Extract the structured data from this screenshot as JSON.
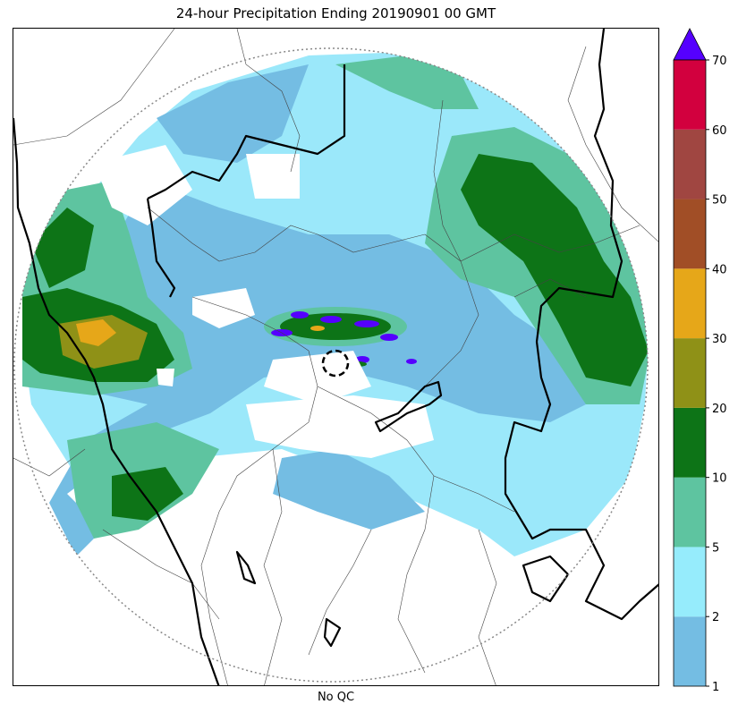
{
  "title": "24-hour Precipitation Ending 20190901 00 GMT",
  "xlabel": "No QC",
  "colorbar": {
    "levels": [
      "1",
      "2",
      "5",
      "10",
      "20",
      "30",
      "40",
      "50",
      "60",
      "70"
    ],
    "colors": [
      "#74bde3",
      "#96ecfc",
      "#5ec4a0",
      "#0d7417",
      "#8f9117",
      "#e6a719",
      "#a14e26",
      "#a04641",
      "#d2003e"
    ],
    "extend_color": "#5500ff"
  },
  "colors": {
    "trace": "#9be8fa",
    "light": "#74bde3",
    "moderate": "#5ec4a0",
    "heavy": "#0d7417",
    "very_heavy": "#8f9117",
    "intense": "#e6a719",
    "extreme": "#5500ff",
    "range_ring": "#888888",
    "border_major": "#000000",
    "border_minor": "#444444"
  }
}
